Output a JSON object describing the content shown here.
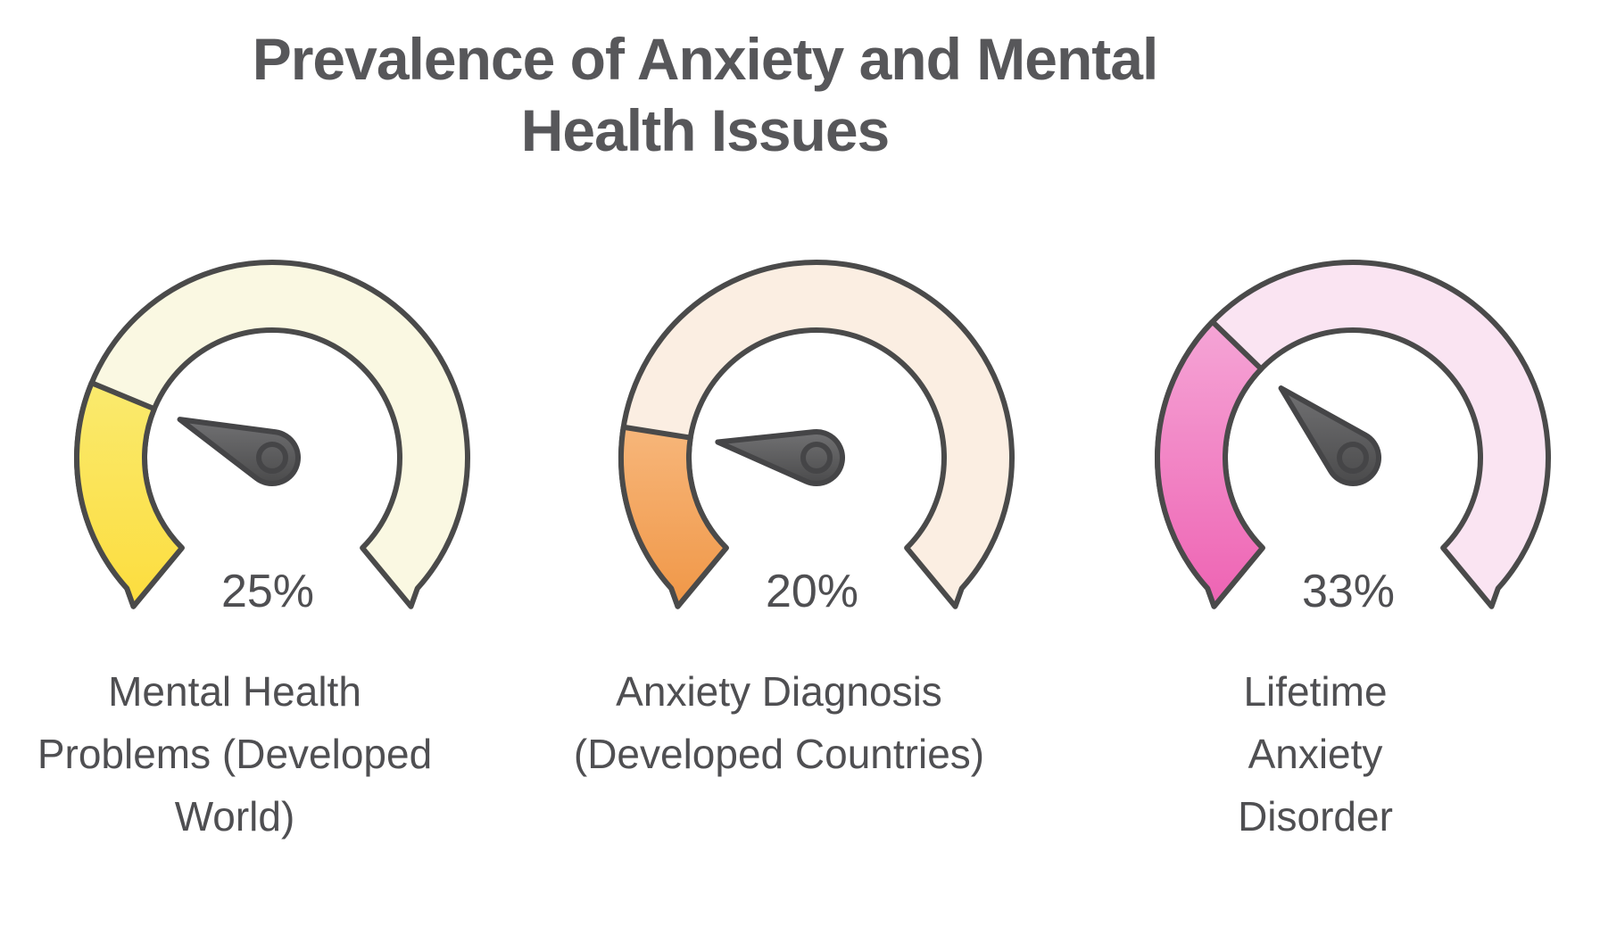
{
  "title": {
    "full": "Prevalence of Anxiety and Mental Health Issues",
    "line1": "Prevalence of Anxiety and Mental",
    "line2": "Health Issues"
  },
  "chart_data": {
    "type": "gauge",
    "title": "Prevalence of Anxiety and Mental Health Issues",
    "unit": "%",
    "min": 0,
    "max": 100,
    "arc_sweep_degrees": 270,
    "gauges": [
      {
        "id": "mental-health-problems",
        "value": 25,
        "value_display": "25%",
        "label": "Mental Health Problems (Developed World)",
        "label_display": "Mental Health\nProblems (Developed\nWorld)",
        "fill_top": "#FAEA6E",
        "fill_bottom": "#FCDD3E",
        "track": "#FAF8E2"
      },
      {
        "id": "anxiety-diagnosis",
        "value": 20,
        "value_display": "20%",
        "label": "Anxiety Diagnosis (Developed Countries)",
        "label_display": "Anxiety Diagnosis\n(Developed Countries)",
        "fill_top": "#F7B67A",
        "fill_bottom": "#F09747",
        "track": "#FBEEE2"
      },
      {
        "id": "lifetime-anxiety-disorder",
        "value": 33,
        "value_display": "33%",
        "label": "Lifetime Anxiety Disorder",
        "label_display": "Lifetime Anxiety\nDisorder",
        "fill_top": "#F5A5D6",
        "fill_bottom": "#EE63B3",
        "track": "#FAE4F2"
      }
    ],
    "style": {
      "outline_color": "#4A4A4A",
      "needle_light": "#717173",
      "needle_dark": "#4B4B4C",
      "needle_outline": "#454547",
      "text_color": "#4F4F52",
      "title_color": "#57575A",
      "background": "#FFFFFF"
    }
  }
}
